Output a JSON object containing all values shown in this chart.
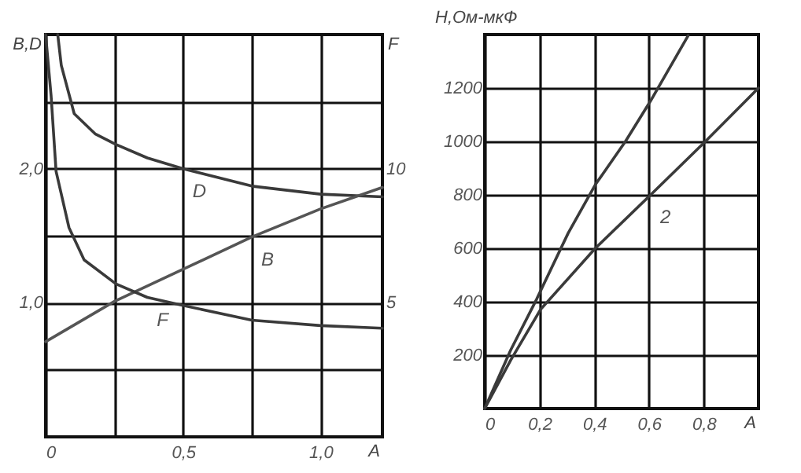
{
  "chart_data": [
    {
      "type": "line",
      "xlabel": "A",
      "ylabel": "B,D",
      "y2label": "F",
      "xlim": [
        0,
        1.225
      ],
      "ylim": [
        0,
        3
      ],
      "y2lim": [
        0,
        15
      ],
      "xticks": [
        0,
        {
          "value": 0.25,
          "label": null
        },
        {
          "value": 0.5,
          "label": "0,5"
        },
        {
          "value": 0.75,
          "label": null
        },
        {
          "value": 1,
          "label": "1,0"
        }
      ],
      "yticks": [
        {
          "value": 0.5,
          "label": null
        },
        {
          "value": 1,
          "label": "1,0"
        },
        {
          "value": 1.5,
          "label": null
        },
        {
          "value": 2,
          "label": "2,0"
        },
        {
          "value": 2.5,
          "label": null
        }
      ],
      "y2ticks": [
        5,
        10
      ],
      "grid": true,
      "series": [
        {
          "name": "D",
          "color": "#3a3a3a",
          "x": [
            0.044,
            0.057,
            0.104,
            0.18,
            0.256,
            0.37,
            0.5,
            0.75,
            1.0,
            1.225
          ],
          "values": [
            3.0,
            2.77,
            2.41,
            2.26,
            2.18,
            2.08,
            2.0,
            1.87,
            1.81,
            1.79
          ]
        },
        {
          "name": "B",
          "color": "#555555",
          "x": [
            0,
            0.25,
            0.5,
            0.75,
            1.0,
            1.225
          ],
          "values": [
            0.71,
            1.01,
            1.25,
            1.49,
            1.7,
            1.86
          ]
        },
        {
          "name": "F",
          "color": "#3a3a3a",
          "axis": "y2",
          "x": [
            0,
            0.02,
            0.038,
            0.085,
            0.14,
            0.256,
            0.37,
            0.5,
            0.75,
            1.0,
            1.225
          ],
          "values": [
            15,
            12.7,
            9.9,
            7.8,
            6.6,
            5.7,
            5.2,
            4.9,
            4.35,
            4.15,
            4.05
          ]
        }
      ]
    },
    {
      "type": "line",
      "xlabel": "A",
      "ylabel": "Н,Ом-мкФ",
      "xlim": [
        0,
        1
      ],
      "ylim": [
        0,
        1400
      ],
      "xticks": [
        0,
        {
          "value": 0.2,
          "label": "0,2"
        },
        {
          "value": 0.4,
          "label": "0,4"
        },
        {
          "value": 0.6,
          "label": "0,6"
        },
        {
          "value": 0.8,
          "label": "0,8"
        }
      ],
      "yticks": [
        200,
        400,
        600,
        800,
        1000,
        1200
      ],
      "grid": true,
      "series": [
        {
          "color": "#3a3a3a",
          "x": [
            0,
            0.095,
            0.19,
            0.305,
            0.404,
            0.514,
            0.606,
            0.743
          ],
          "values": [
            0,
            219,
            410,
            657,
            838,
            1000,
            1152,
            1396
          ]
        },
        {
          "name": "2",
          "color": "#3a3a3a",
          "x": [
            0,
            0.095,
            0.204,
            0.404,
            0.606,
            0.806,
            1.0
          ],
          "values": [
            0,
            181,
            371,
            600,
            800,
            1000,
            1200
          ]
        }
      ]
    }
  ]
}
